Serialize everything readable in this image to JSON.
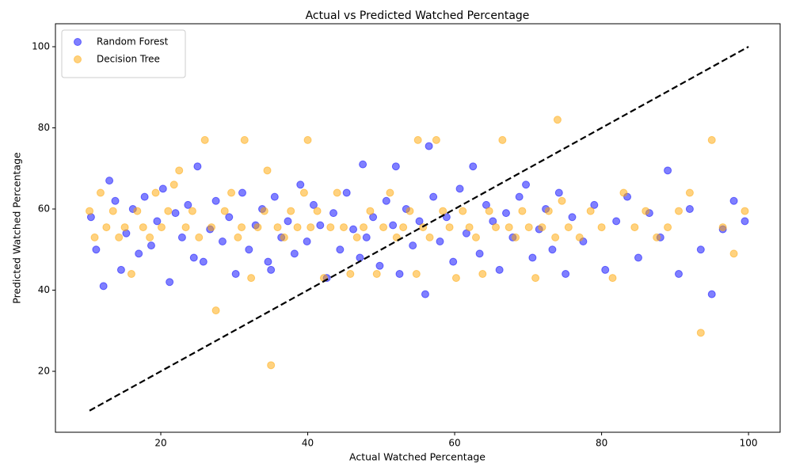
{
  "chart_data": {
    "type": "scatter",
    "title": "Actual vs Predicted Watched Percentage",
    "x_label": "Actual Watched Percentage",
    "y_label": "Predicted Watched Percentage",
    "xlim": [
      5.66,
      104.3
    ],
    "ylim": [
      4.98,
      105.66
    ],
    "xticks": [
      20,
      40,
      60,
      80,
      100
    ],
    "yticks": [
      20,
      40,
      60,
      80,
      100
    ],
    "grid": false,
    "legend": "upper left",
    "marker_alpha": 0.5,
    "series": [
      {
        "name": "Random Forest",
        "color": "#0000ff",
        "x": [
          10.5,
          11.2,
          12.2,
          13,
          13.8,
          14.6,
          15.3,
          16.2,
          17,
          17.8,
          18.7,
          19.5,
          20.3,
          21.2,
          22,
          22.9,
          23.7,
          24.5,
          25,
          25.8,
          26.7,
          27.5,
          28.4,
          29.3,
          30.2,
          31.1,
          32,
          32.9,
          33.8,
          34.6,
          35,
          35.5,
          36.4,
          37.3,
          38.2,
          39,
          39.9,
          40.8,
          41.7,
          42.6,
          43.5,
          44.4,
          45.3,
          46.2,
          47.1,
          47.5,
          48,
          48.9,
          49.8,
          50.7,
          51.6,
          52,
          52.5,
          53.4,
          54.3,
          55.2,
          56,
          56.5,
          57.1,
          58,
          58.9,
          59.8,
          60.7,
          61.6,
          62.5,
          63.4,
          64.3,
          65.2,
          66.1,
          67,
          67.9,
          68.8,
          69.7,
          70.6,
          71.5,
          72.4,
          73.3,
          74.2,
          75.1,
          76,
          77.5,
          79,
          80.5,
          82,
          83.5,
          85,
          86.5,
          88,
          89,
          90.5,
          92,
          93.5,
          95,
          96.5,
          98,
          99.5
        ],
        "values": [
          58,
          50,
          41,
          67,
          62,
          45,
          54,
          60,
          49,
          63,
          51,
          57,
          65,
          42,
          59,
          53,
          61,
          48,
          70.5,
          47,
          55,
          62,
          52,
          58,
          44,
          64,
          50,
          56,
          60,
          47,
          45,
          63,
          53,
          57,
          49,
          66,
          52,
          61,
          56,
          43,
          59,
          50,
          64,
          55,
          48,
          71,
          53,
          58,
          46,
          62,
          56,
          70.5,
          44,
          60,
          51,
          57,
          39,
          75.5,
          63,
          52,
          58,
          47,
          65,
          54,
          70.5,
          49,
          61,
          57,
          45,
          59,
          53,
          63,
          66,
          48,
          55,
          60,
          50,
          64,
          44,
          58,
          52,
          61,
          45,
          57,
          63,
          48,
          59,
          53,
          69.5,
          44,
          60,
          50,
          39,
          55,
          62,
          57
        ]
      },
      {
        "name": "Decision Tree",
        "color": "#ffa500",
        "x": [
          10.3,
          11,
          11.8,
          12.6,
          13.5,
          14.3,
          15.1,
          16,
          16.8,
          17.6,
          18.5,
          19.3,
          20.1,
          21,
          21.8,
          22.5,
          23.4,
          24.3,
          25.2,
          26,
          26.9,
          27.5,
          28.7,
          29.6,
          30.5,
          31,
          31.4,
          32.3,
          33.2,
          34.1,
          34.5,
          35,
          35.9,
          36.8,
          37.7,
          38.6,
          39.5,
          40,
          40.4,
          41.3,
          42.2,
          43.1,
          44,
          44.9,
          45.8,
          46.7,
          47.6,
          48.5,
          49.4,
          50.3,
          51.2,
          52.1,
          53,
          53.9,
          54.8,
          55,
          55.7,
          56.6,
          57.5,
          58.4,
          59.3,
          60.2,
          61.1,
          62,
          62.9,
          63.8,
          64.7,
          65.6,
          66.5,
          67.4,
          68.3,
          69.2,
          70.1,
          71,
          71.9,
          72.8,
          73.7,
          74,
          74.6,
          75.5,
          77,
          78.5,
          80,
          81.5,
          83,
          84.5,
          86,
          87.5,
          89,
          90.5,
          92,
          93.5,
          95,
          96.5,
          98,
          99.5
        ],
        "values": [
          59.5,
          53,
          64,
          55.5,
          59.5,
          53,
          55.5,
          44,
          59.5,
          55.5,
          53,
          64,
          55.5,
          59.5,
          66,
          69.5,
          55.5,
          59.5,
          53,
          77,
          55.5,
          35,
          59.5,
          64,
          53,
          55.5,
          77,
          43,
          55.5,
          59.5,
          69.5,
          21.5,
          55.5,
          53,
          59.5,
          55.5,
          64,
          77,
          55.5,
          59.5,
          43,
          55.5,
          64,
          55.5,
          44,
          53,
          55.5,
          59.5,
          44,
          55.5,
          64,
          53,
          55.5,
          59.5,
          44,
          77,
          55.5,
          53,
          77,
          59.5,
          55.5,
          43,
          59.5,
          55.5,
          53,
          44,
          59.5,
          55.5,
          77,
          55.5,
          53,
          59.5,
          55.5,
          43,
          55.5,
          59.5,
          53,
          82,
          62,
          55.5,
          53,
          59.5,
          55.5,
          43,
          64,
          55.5,
          59.5,
          53,
          55.5,
          59.5,
          64,
          29.5,
          77,
          55.5,
          49,
          59.5
        ]
      }
    ],
    "reference_line": {
      "color": "#000000",
      "x": [
        10.3,
        100
      ],
      "y": [
        10.3,
        100
      ]
    }
  }
}
